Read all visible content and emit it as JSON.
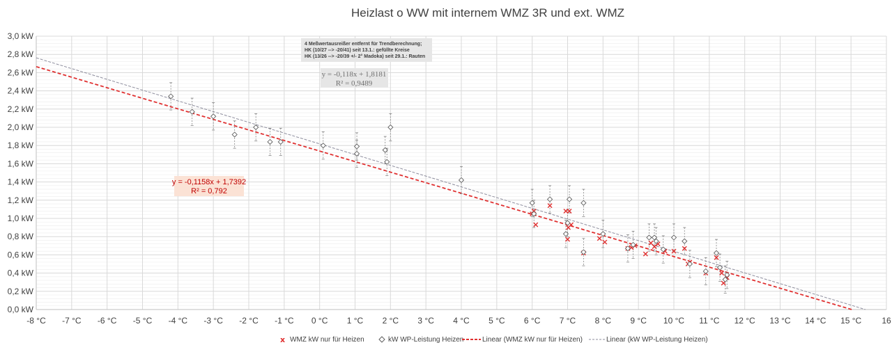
{
  "chart_data": {
    "type": "scatter",
    "title": "Heizlast o WW mit internem WMZ 3R und ext. WMZ",
    "xlim": [
      -8,
      16
    ],
    "ylim": [
      0,
      3
    ],
    "x_ticks": [
      "-8 °C",
      "-7 °C",
      "-6 °C",
      "-5 °C",
      "-4 °C",
      "-3 °C",
      "-2 °C",
      "-1 °C",
      "0 °C",
      "1 °C",
      "2 °C",
      "3 °C",
      "4 °C",
      "5 °C",
      "6 °C",
      "7 °C",
      "8 °C",
      "9 °C",
      "10 °C",
      "11 °C",
      "12 °C",
      "13 °C",
      "14 °C",
      "15 °C",
      "16"
    ],
    "y_ticks": [
      "0,0 kW",
      "0,2 kW",
      "0,4 kW",
      "0,6 kW",
      "0,8 kW",
      "1,0 kW",
      "1,2 kW",
      "1,4 kW",
      "1,6 kW",
      "1,8 kW",
      "2,0 kW",
      "2,2 kW",
      "2,4 kW",
      "2,6 kW",
      "2,8 kW",
      "3,0 kW"
    ],
    "grid": true,
    "legend_position": "bottom",
    "error_bar": 0.15,
    "series": [
      {
        "name": "WMZ kW nur für Heizen",
        "marker": "x",
        "color": "#e03030",
        "points": [
          [
            6.0,
            1.05
          ],
          [
            6.05,
            1.08
          ],
          [
            6.1,
            0.93
          ],
          [
            6.5,
            1.14
          ],
          [
            6.95,
            1.08
          ],
          [
            7.0,
            0.77
          ],
          [
            7.02,
            0.9
          ],
          [
            7.05,
            1.08
          ],
          [
            7.1,
            0.93
          ],
          [
            7.45,
            0.62
          ],
          [
            7.9,
            0.78
          ],
          [
            8.05,
            0.74
          ],
          [
            8.7,
            0.67
          ],
          [
            8.8,
            0.68
          ],
          [
            8.9,
            0.7
          ],
          [
            9.2,
            0.61
          ],
          [
            9.35,
            0.73
          ],
          [
            9.45,
            0.69
          ],
          [
            9.55,
            0.72
          ],
          [
            9.75,
            0.64
          ],
          [
            10.0,
            0.64
          ],
          [
            10.3,
            0.67
          ],
          [
            10.4,
            0.5
          ],
          [
            10.45,
            0.52
          ],
          [
            10.9,
            0.4
          ],
          [
            11.2,
            0.57
          ],
          [
            11.35,
            0.4
          ],
          [
            11.4,
            0.29
          ],
          [
            11.5,
            0.35
          ]
        ]
      },
      {
        "name": "kW WP-Leistung Heizen",
        "marker": "diamond",
        "color": "#606060",
        "points": [
          [
            -4.2,
            2.34
          ],
          [
            -3.6,
            2.17
          ],
          [
            -3.0,
            2.12
          ],
          [
            -2.4,
            1.92
          ],
          [
            -1.8,
            2.0
          ],
          [
            -1.4,
            1.84
          ],
          [
            -1.1,
            1.84
          ],
          [
            0.1,
            1.8
          ],
          [
            1.05,
            1.79
          ],
          [
            1.05,
            1.71
          ],
          [
            1.85,
            1.75
          ],
          [
            1.9,
            1.62
          ],
          [
            2.0,
            2.0
          ],
          [
            4.0,
            1.42
          ],
          [
            6.0,
            1.17
          ],
          [
            6.05,
            1.05
          ],
          [
            6.5,
            1.21
          ],
          [
            6.95,
            0.83
          ],
          [
            7.0,
            0.95
          ],
          [
            7.05,
            1.21
          ],
          [
            7.45,
            1.17
          ],
          [
            7.45,
            0.63
          ],
          [
            8.0,
            0.83
          ],
          [
            8.7,
            0.67
          ],
          [
            8.85,
            0.71
          ],
          [
            9.3,
            0.79
          ],
          [
            9.45,
            0.79
          ],
          [
            9.5,
            0.75
          ],
          [
            9.7,
            0.66
          ],
          [
            10.0,
            0.79
          ],
          [
            10.3,
            0.75
          ],
          [
            10.45,
            0.5
          ],
          [
            10.9,
            0.42
          ],
          [
            11.2,
            0.62
          ],
          [
            11.3,
            0.46
          ],
          [
            11.45,
            0.33
          ],
          [
            11.5,
            0.38
          ]
        ]
      },
      {
        "name": "Linear (WMZ kW nur für Heizen)",
        "type": "trendline",
        "slope": -0.1158,
        "intercept": 1.7392,
        "r2": 0.792,
        "color": "#e03030"
      },
      {
        "name": "Linear (kW WP-Leistung Heizen)",
        "type": "trendline",
        "slope": -0.118,
        "intercept": 1.8181,
        "r2": 0.9489,
        "color": "#8c8c9c"
      }
    ]
  },
  "annotations": {
    "note_lines": [
      "4 Meßwertausreißer entfernt für Trendberechnung;",
      "HK (10/27 -->  -20/41) seit 13.1.: gefüllte Kreise",
      "HK (13/26 --> -20/39 +/- 2° Madoka) seit 29.1.: Rauten"
    ],
    "eq_gray_1": "y = -0,118x + 1,8181",
    "eq_gray_2": "R² = 0,9489",
    "eq_red_1": "y = -0,1158x + 1,7392",
    "eq_red_2": "R² = 0,792"
  },
  "legend": {
    "item1": "WMZ kW nur für Heizen",
    "item2": "kW WP-Leistung Heizen",
    "item3": "Linear (WMZ kW nur für Heizen)",
    "item4": "Linear (kW WP-Leistung Heizen)"
  }
}
